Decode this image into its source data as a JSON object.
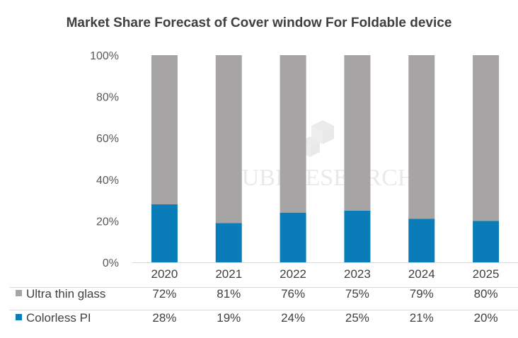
{
  "chart_data": {
    "type": "bar",
    "stacked": true,
    "percent_stacked": true,
    "title": "Market Share Forecast of Cover window For Foldable device",
    "categories": [
      "2020",
      "2021",
      "2022",
      "2023",
      "2024",
      "2025"
    ],
    "series": [
      {
        "name": "Colorless PI",
        "values": [
          28,
          19,
          24,
          25,
          21,
          20
        ],
        "labels": [
          "28%",
          "19%",
          "24%",
          "25%",
          "21%",
          "20%"
        ],
        "color": "#0a7db8"
      },
      {
        "name": "Ultra thin glass",
        "values": [
          72,
          81,
          76,
          75,
          79,
          80
        ],
        "labels": [
          "72%",
          "81%",
          "76%",
          "75%",
          "79%",
          "80%"
        ],
        "color": "#a6a4a4"
      }
    ],
    "ylim": [
      0,
      100
    ],
    "y_ticks": [
      "0%",
      "20%",
      "40%",
      "60%",
      "80%",
      "100%"
    ],
    "grid": false,
    "legend": "data-table-below",
    "watermark": "UBI RESEARCH"
  }
}
